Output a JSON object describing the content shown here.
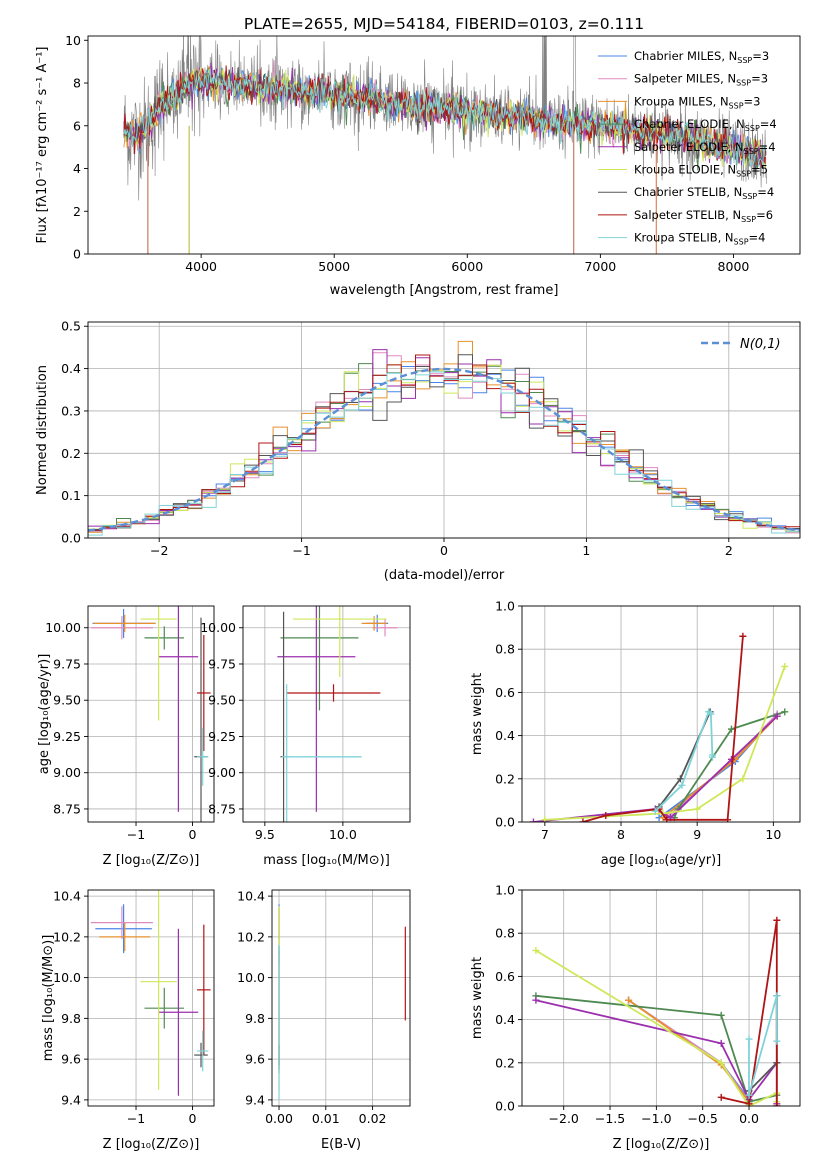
{
  "figure": {
    "title": "PLATE=2655, MJD=54184, FIBERID=0103, z=0.111"
  },
  "colors": {
    "Chabrier MILES": "#4a86e8",
    "Salpeter MILES": "#e08bbf",
    "Kroupa MILES": "#e8902c",
    "Chabrier ELODIE": "#4e8a50",
    "Salpeter ELODIE": "#9b2fae",
    "Kroupa ELODIE": "#cfe85a",
    "Chabrier STELIB": "#555555",
    "Salpeter STELIB": "#b01515",
    "Kroupa STELIB": "#7fd3d8",
    "data": "#808080",
    "normal": "#5b8fd6"
  },
  "chart_data": [
    {
      "id": "spectrum",
      "type": "line",
      "xlabel": "wavelength [Angstrom, rest frame]",
      "ylabel": "Flux [fλ10⁻¹⁷ erg cm⁻² s⁻¹ A⁻¹]",
      "xlim": [
        3150,
        8500
      ],
      "ylim": [
        0,
        10.2
      ],
      "xticks": [
        4000,
        5000,
        6000,
        7000,
        8000
      ],
      "yticks": [
        0,
        2,
        4,
        6,
        8,
        10
      ],
      "legend_position": "top-right",
      "grid": false,
      "model_continuum": {
        "x": [
          3420,
          3500,
          3600,
          3700,
          3800,
          3900,
          4000,
          4100,
          4200,
          4400,
          4600,
          4800,
          5000,
          5200,
          5400,
          5600,
          5800,
          6000,
          6200,
          6400,
          6600,
          6800,
          7000,
          7200,
          7400,
          7600,
          7800,
          8000,
          8250
        ],
        "y": [
          5.8,
          5.5,
          6.0,
          7.0,
          7.4,
          7.9,
          8.2,
          8.1,
          7.9,
          7.8,
          7.7,
          7.6,
          7.5,
          7.3,
          7.1,
          6.9,
          6.8,
          6.7,
          6.5,
          6.4,
          6.2,
          6.1,
          6.0,
          5.9,
          5.7,
          5.5,
          5.2,
          4.9,
          4.5
        ]
      },
      "series": [
        {
          "label": "Chabrier MILES, N_SSP=3",
          "name": "Chabrier MILES",
          "label_text": "Chabrier MILES, N",
          "sub": "SSP",
          "n": "3"
        },
        {
          "label": "Salpeter MILES, N_SSP=3",
          "name": "Salpeter MILES",
          "label_text": "Salpeter MILES, N",
          "sub": "SSP",
          "n": "3"
        },
        {
          "label": "Kroupa MILES, N_SSP=3",
          "name": "Kroupa MILES",
          "label_text": "Kroupa MILES, N",
          "sub": "SSP",
          "n": "3"
        },
        {
          "label": "Chabrier ELODIE, N_SSP=4",
          "name": "Chabrier ELODIE",
          "label_text": "Chabrier ELODIE, N",
          "sub": "SSP",
          "n": "4"
        },
        {
          "label": "Salpeter ELODIE, N_SSP=4",
          "name": "Salpeter ELODIE",
          "label_text": "Salpeter ELODIE, N",
          "sub": "SSP",
          "n": "4"
        },
        {
          "label": "Kroupa ELODIE, N_SSP=5",
          "name": "Kroupa ELODIE",
          "label_text": "Kroupa ELODIE, N",
          "sub": "SSP",
          "n": "5"
        },
        {
          "label": "Chabrier STELIB, N_SSP=4",
          "name": "Chabrier STELIB",
          "label_text": "Chabrier STELIB, N",
          "sub": "SSP",
          "n": "4"
        },
        {
          "label": "Salpeter STELIB, N_SSP=6",
          "name": "Salpeter STELIB",
          "label_text": "Salpeter STELIB, N",
          "sub": "SSP",
          "n": "6"
        },
        {
          "label": "Kroupa STELIB, N_SSP=4",
          "name": "Kroupa STELIB",
          "label_text": "Kroupa STELIB, N",
          "sub": "SSP",
          "n": "4"
        }
      ]
    },
    {
      "id": "residuals",
      "type": "histogram",
      "xlabel": "(data-model)/error",
      "ylabel": "Normed distribution",
      "xlim": [
        -2.5,
        2.5
      ],
      "ylim": [
        0,
        0.51
      ],
      "xticks": [
        -2,
        -1,
        0,
        1,
        2
      ],
      "yticks": [
        0.0,
        0.1,
        0.2,
        0.3,
        0.4,
        0.5
      ],
      "grid": true,
      "bin_edges_start": -2.5,
      "bin_width": 0.1,
      "reference_curve": {
        "label": "N(0,1)",
        "mean": 0,
        "sigma": 1
      },
      "legend_position": "top-right"
    },
    {
      "id": "age_vs_Z",
      "type": "errorbar",
      "xlabel": "Z [log₁₀(Z/Z⊙)]",
      "ylabel": "age  [log₁₀(age/yr)]",
      "xlim": [
        -1.85,
        0.38
      ],
      "ylim": [
        8.66,
        10.15
      ],
      "xticks": [
        -1,
        0
      ],
      "yticks": [
        8.75,
        9.0,
        9.25,
        9.5,
        9.75,
        10.0
      ],
      "grid": true,
      "points": [
        {
          "series": "Chabrier MILES",
          "x": -1.22,
          "xerr": 0.55,
          "y": 10.03,
          "yerr": 0.1
        },
        {
          "series": "Salpeter MILES",
          "x": -1.25,
          "xerr": 0.55,
          "y": 10.0,
          "yerr": 0.08
        },
        {
          "series": "Kroupa MILES",
          "x": -1.2,
          "xerr": 0.55,
          "y": 10.03,
          "yerr": 0.06
        },
        {
          "series": "Chabrier ELODIE",
          "x": -0.5,
          "xerr": 0.35,
          "y": 9.93,
          "yerr": 0.08
        },
        {
          "series": "Salpeter ELODIE",
          "x": -0.25,
          "xerr": 0.35,
          "y": 9.8,
          "yerr": 1.07
        },
        {
          "series": "Kroupa ELODIE",
          "x": -0.6,
          "xerr": 0.32,
          "y": 10.06,
          "yerr": 0.7
        },
        {
          "series": "Chabrier STELIB",
          "x": 0.15,
          "xerr": 0.12,
          "y": 9.11,
          "yerr": 0.96
        },
        {
          "series": "Salpeter STELIB",
          "x": 0.2,
          "xerr": 0.12,
          "y": 9.55,
          "yerr": 0.4
        },
        {
          "series": "Kroupa STELIB",
          "x": 0.18,
          "xerr": 0.1,
          "y": 9.11,
          "yerr": 0.2
        }
      ]
    },
    {
      "id": "age_vs_mass",
      "type": "errorbar",
      "xlabel": "mass [log₁₀(M/M⊙)]",
      "ylabel": "",
      "xlim": [
        9.36,
        10.43
      ],
      "ylim": [
        8.66,
        10.15
      ],
      "xticks": [
        9.5,
        10.0
      ],
      "yticks": [
        8.75,
        9.0,
        9.25,
        9.5,
        9.75,
        10.0
      ],
      "grid": true,
      "points": [
        {
          "series": "Chabrier MILES",
          "x": 10.22,
          "xerr": 0.07,
          "y": 10.03,
          "yerr": 0.06
        },
        {
          "series": "Salpeter MILES",
          "x": 10.27,
          "xerr": 0.08,
          "y": 10.0,
          "yerr": 0.06
        },
        {
          "series": "Kroupa MILES",
          "x": 10.2,
          "xerr": 0.08,
          "y": 10.03,
          "yerr": 0.05
        },
        {
          "series": "Chabrier ELODIE",
          "x": 9.85,
          "xerr": 0.25,
          "y": 9.93,
          "yerr": 0.5
        },
        {
          "series": "Salpeter ELODIE",
          "x": 9.83,
          "xerr": 0.25,
          "y": 9.8,
          "yerr": 1.07
        },
        {
          "series": "Kroupa ELODIE",
          "x": 9.98,
          "xerr": 0.3,
          "y": 10.06,
          "yerr": 0.4
        },
        {
          "series": "Chabrier STELIB",
          "x": 9.62,
          "xerr": 0.02,
          "y": 9.11,
          "yerr": 1.0
        },
        {
          "series": "Salpeter STELIB",
          "x": 9.94,
          "xerr": 0.3,
          "y": 9.55,
          "yerr": 0.06
        },
        {
          "series": "Kroupa STELIB",
          "x": 9.64,
          "xerr": 0.03,
          "y": 9.11,
          "yerr": 0.5
        }
      ],
      "extra_hbar": {
        "series": "Kroupa STELIB",
        "x0": 9.62,
        "x1": 10.12,
        "y": 9.11
      }
    },
    {
      "id": "weight_vs_age",
      "type": "line",
      "xlabel": "age  [log₁₀(age/yr)]",
      "ylabel": "mass weight",
      "xlim": [
        6.7,
        10.35
      ],
      "ylim": [
        0,
        1.0
      ],
      "xticks": [
        7,
        8,
        9,
        10
      ],
      "yticks": [
        0.0,
        0.2,
        0.4,
        0.6,
        0.8,
        1.0
      ],
      "grid": true,
      "series": [
        {
          "name": "Chabrier MILES",
          "x": [
            8.5,
            9.5,
            10.05
          ],
          "y": [
            0.02,
            0.28,
            0.5
          ]
        },
        {
          "name": "Salpeter MILES",
          "x": [
            8.6,
            9.45,
            10.05
          ],
          "y": [
            0.02,
            0.28,
            0.5
          ]
        },
        {
          "name": "Kroupa MILES",
          "x": [
            8.55,
            9.5,
            10.05
          ],
          "y": [
            0.02,
            0.29,
            0.49
          ]
        },
        {
          "name": "Chabrier ELODIE",
          "x": [
            8.7,
            8.75,
            9.45,
            10.15
          ],
          "y": [
            0.02,
            0.06,
            0.43,
            0.51
          ]
        },
        {
          "name": "Salpeter ELODIE",
          "x": [
            6.85,
            8.45,
            8.65,
            9.45,
            10.05
          ],
          "y": [
            0.0,
            0.06,
            0.02,
            0.29,
            0.49
          ]
        },
        {
          "name": "Kroupa ELODIE",
          "x": [
            7.0,
            8.55,
            9.0,
            9.6,
            10.15
          ],
          "y": [
            0.01,
            0.04,
            0.06,
            0.2,
            0.72
          ]
        },
        {
          "name": "Chabrier STELIB",
          "x": [
            8.5,
            8.78,
            9.17
          ],
          "y": [
            0.07,
            0.2,
            0.51
          ]
        },
        {
          "name": "Salpeter STELIB",
          "x": [
            7.5,
            7.8,
            8.5,
            8.6,
            9.4,
            9.6
          ],
          "y": [
            0.0,
            0.03,
            0.06,
            0.01,
            0.01,
            0.86
          ]
        },
        {
          "name": "Kroupa STELIB",
          "x": [
            8.45,
            8.8,
            9.15,
            9.18,
            9.2,
            9.2
          ],
          "y": [
            0.05,
            0.17,
            0.51,
            0.5,
            0.3,
            0.31
          ]
        }
      ]
    },
    {
      "id": "mass_vs_Z",
      "type": "errorbar",
      "xlabel": "Z [log₁₀(Z/Z⊙)]",
      "ylabel": "mass [log₁₀(M/M⊙)]",
      "xlim": [
        -1.85,
        0.38
      ],
      "ylim": [
        9.37,
        10.43
      ],
      "xticks": [
        -1,
        0
      ],
      "yticks": [
        9.4,
        9.6,
        9.8,
        10.0,
        10.2,
        10.4
      ],
      "grid": true,
      "points": [
        {
          "series": "Chabrier MILES",
          "x": -1.22,
          "xerr": 0.5,
          "y": 10.24,
          "yerr": 0.12
        },
        {
          "series": "Salpeter MILES",
          "x": -1.25,
          "xerr": 0.55,
          "y": 10.27,
          "yerr": 0.08
        },
        {
          "series": "Kroupa MILES",
          "x": -1.2,
          "xerr": 0.45,
          "y": 10.2,
          "yerr": 0.07
        },
        {
          "series": "Chabrier ELODIE",
          "x": -0.5,
          "xerr": 0.35,
          "y": 9.85,
          "yerr": 0.1
        },
        {
          "series": "Salpeter ELODIE",
          "x": -0.25,
          "xerr": 0.35,
          "y": 9.83,
          "yerr": 0.41
        },
        {
          "series": "Kroupa ELODIE",
          "x": -0.6,
          "xerr": 0.32,
          "y": 9.98,
          "yerr": 0.53
        },
        {
          "series": "Chabrier STELIB",
          "x": 0.15,
          "xerr": 0.12,
          "y": 9.62,
          "yerr": 0.06
        },
        {
          "series": "Salpeter STELIB",
          "x": 0.2,
          "xerr": 0.12,
          "y": 9.94,
          "yerr": 0.32
        },
        {
          "series": "Kroupa STELIB",
          "x": 0.18,
          "xerr": 0.1,
          "y": 9.64,
          "yerr": 0.1
        }
      ]
    },
    {
      "id": "mass_vs_EBV",
      "type": "errorbar",
      "xlabel": "E(B-V)",
      "ylabel": "",
      "xlim": [
        -0.0015,
        0.028
      ],
      "ylim": [
        9.37,
        10.43
      ],
      "xticks": [
        0.0,
        0.01,
        0.02
      ],
      "yticks": [
        9.4,
        9.6,
        9.8,
        10.0,
        10.2,
        10.4
      ],
      "grid": true,
      "points": [
        {
          "series": "Chabrier MILES",
          "x": 0.0,
          "xerr": 0.0,
          "y": 10.24,
          "yerr": 0.12
        },
        {
          "series": "Salpeter MILES",
          "x": 0.0,
          "xerr": 0.0,
          "y": 10.27,
          "yerr": 0.08
        },
        {
          "series": "Kroupa MILES",
          "x": 0.0,
          "xerr": 0.0,
          "y": 10.2,
          "yerr": 0.14
        },
        {
          "series": "Chabrier ELODIE",
          "x": 0.0,
          "xerr": 0.0,
          "y": 9.85,
          "yerr": 0.3
        },
        {
          "series": "Salpeter ELODIE",
          "x": 0.0,
          "xerr": 0.0,
          "y": 9.83,
          "yerr": 0.3
        },
        {
          "series": "Kroupa ELODIE",
          "x": 0.0,
          "xerr": 0.0,
          "y": 9.9,
          "yerr": 0.45
        },
        {
          "series": "Chabrier STELIB",
          "x": 0.0,
          "xerr": 0.0,
          "y": 9.62,
          "yerr": 0.05
        },
        {
          "series": "Salpeter STELIB",
          "x": 0.027,
          "xerr": 0.0,
          "y": 10.02,
          "yerr": 0.23
        },
        {
          "series": "Kroupa STELIB",
          "x": 0.0,
          "xerr": 0.0,
          "y": 9.78,
          "yerr": 0.38
        }
      ]
    },
    {
      "id": "weight_vs_Z",
      "type": "line",
      "xlabel": "Z [log₁₀(Z/Z⊙)]",
      "ylabel": "mass weight",
      "xlim": [
        -2.45,
        0.55
      ],
      "ylim": [
        0,
        1.0
      ],
      "xticks": [
        -2.0,
        -1.5,
        -1.0,
        -0.5,
        0.0
      ],
      "yticks": [
        0.0,
        0.2,
        0.4,
        0.6,
        0.8,
        1.0
      ],
      "grid": true,
      "series": [
        {
          "name": "Chabrier MILES",
          "x": [
            -1.3,
            -0.3,
            0.0
          ],
          "y": [
            0.49,
            0.2,
            0.03
          ]
        },
        {
          "name": "Salpeter MILES",
          "x": [
            -1.3,
            -0.3,
            0.0
          ],
          "y": [
            0.49,
            0.2,
            0.02
          ]
        },
        {
          "name": "Kroupa MILES",
          "x": [
            -1.3,
            -0.3,
            0.0
          ],
          "y": [
            0.49,
            0.19,
            0.02
          ]
        },
        {
          "name": "Chabrier ELODIE",
          "x": [
            -2.3,
            -0.3,
            0.0,
            0.3
          ],
          "y": [
            0.51,
            0.42,
            0.02,
            0.05
          ]
        },
        {
          "name": "Salpeter ELODIE",
          "x": [
            -2.3,
            -0.3,
            0.0,
            0.3,
            0.3
          ],
          "y": [
            0.49,
            0.29,
            0.03,
            0.2,
            0.01
          ]
        },
        {
          "name": "Kroupa ELODIE",
          "x": [
            -2.3,
            -0.3,
            0.0,
            0.3,
            0.3
          ],
          "y": [
            0.72,
            0.2,
            0.0,
            0.06,
            0.02
          ]
        },
        {
          "name": "Chabrier STELIB",
          "x": [
            0.0,
            0.3,
            0.3
          ],
          "y": [
            0.07,
            0.2,
            0.51
          ]
        },
        {
          "name": "Salpeter STELIB",
          "x": [
            -0.3,
            0.0,
            0.3,
            0.3
          ],
          "y": [
            0.04,
            0.01,
            0.86,
            0.0
          ]
        },
        {
          "name": "Kroupa STELIB",
          "x": [
            0.0,
            0.0,
            0.3,
            0.3
          ],
          "y": [
            0.31,
            0.05,
            0.51,
            0.3
          ]
        }
      ]
    }
  ]
}
